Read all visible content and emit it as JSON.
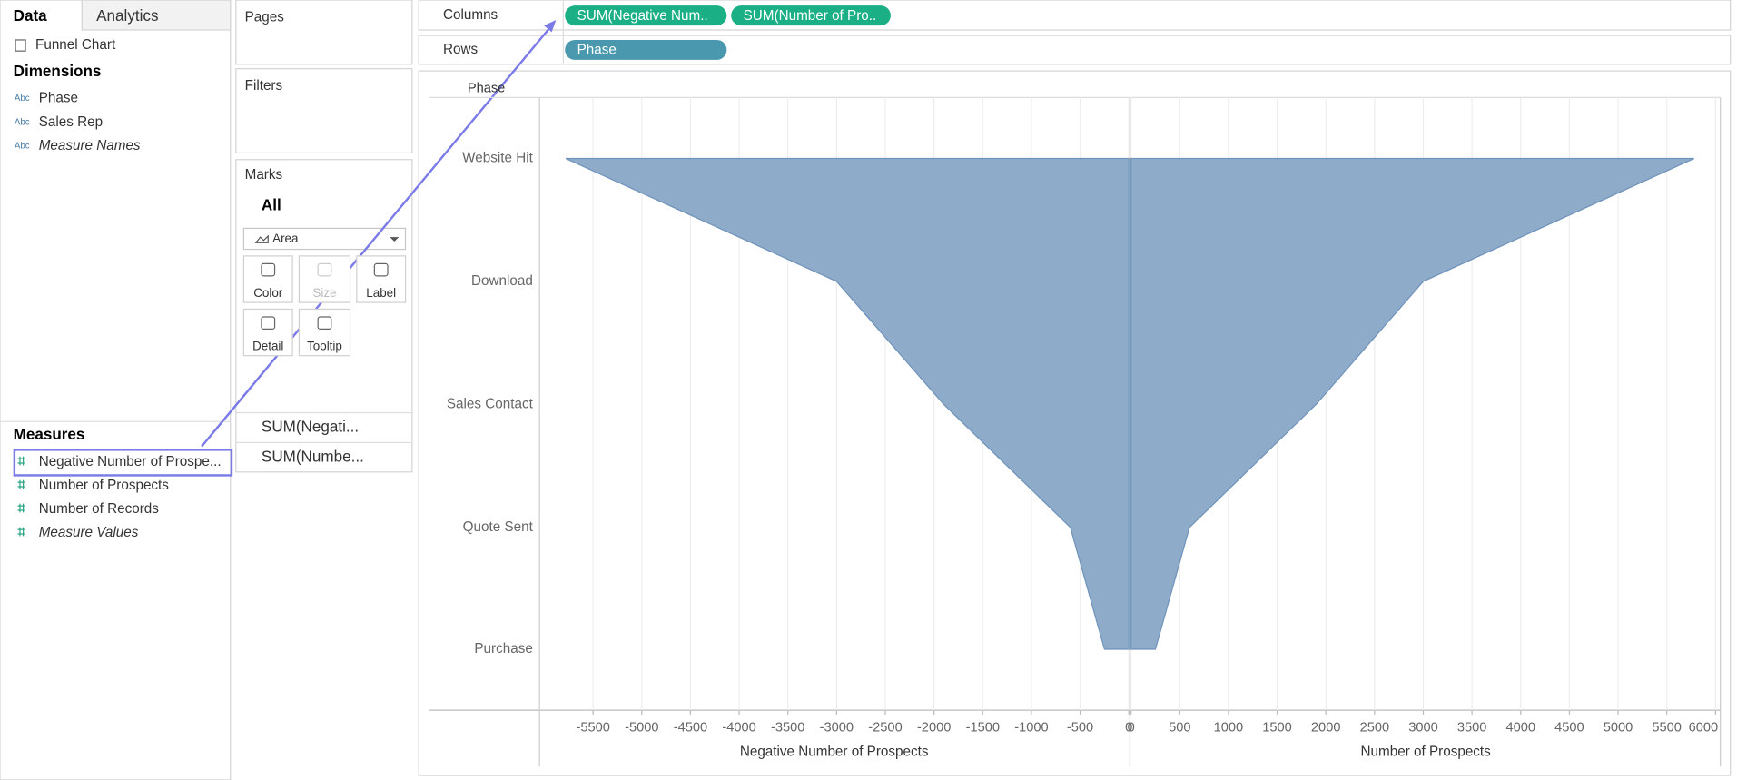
{
  "ui": {
    "tabs": [
      "Data",
      "Analytics"
    ],
    "datasource": "Funnel Chart",
    "dimensions_title": "Dimensions",
    "dimension_icon": "Abc",
    "dimensions": [
      "Phase",
      "Sales Rep",
      "Measure Names"
    ],
    "measures_title": "Measures",
    "measures": [
      "Negative Number of Prospe...",
      "Number of Prospects",
      "Number of Records",
      "Measure Values"
    ],
    "pages": "Pages",
    "filters": "Filters",
    "marks": "Marks",
    "marks_all": "All",
    "mark_type": "Area",
    "mark_buttons": [
      "Color",
      "Size",
      "Label",
      "Detail",
      "Tooltip"
    ],
    "mark_layers": [
      "SUM(Negati...",
      "SUM(Numbe..."
    ],
    "columns_label": "Columns",
    "rows_label": "Rows",
    "column_pills": [
      "SUM(Negative Num..",
      "SUM(Number of Pro.."
    ],
    "row_pills": [
      "Phase"
    ],
    "row_header": "Phase"
  },
  "chart_data": [
    {
      "type": "area",
      "categories": [
        "Website Hit",
        "Download",
        "Sales Contact",
        "Quote Sent",
        "Purchase"
      ],
      "values": [
        -5780,
        -3000,
        -1900,
        -600,
        -250
      ],
      "color": "#8eabc9",
      "xlabel": "Negative Number of Prospects",
      "xlim": [
        -6050,
        0
      ],
      "xticks": [
        -5500,
        -5000,
        -4500,
        -4000,
        -3500,
        -3000,
        -2500,
        -2000,
        -1500,
        -1000,
        -500,
        0
      ],
      "grid": true
    },
    {
      "type": "area",
      "categories": [
        "Website Hit",
        "Download",
        "Sales Contact",
        "Quote Sent",
        "Purchase"
      ],
      "values": [
        5780,
        3000,
        1900,
        600,
        250
      ],
      "color": "#8eabc9",
      "xlabel": "Number of Prospects",
      "xlim": [
        0,
        6050
      ],
      "xticks": [
        0,
        500,
        1000,
        1500,
        2000,
        2500,
        3000,
        3500,
        4000,
        4500,
        5000,
        5500,
        6000
      ],
      "grid": true
    }
  ]
}
